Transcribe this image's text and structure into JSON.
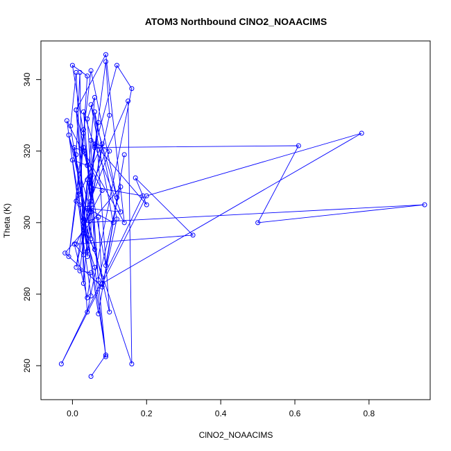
{
  "chart_data": {
    "type": "line",
    "title": "ATOM3 Northbound ClNO2_NOAACIMS",
    "xlabel": "ClNO2_NOAACIMS",
    "ylabel": "Theta (K)",
    "xlim": [
      -0.085,
      0.965
    ],
    "ylim": [
      250.5,
      350.8
    ],
    "xticks": [
      0.0,
      0.2,
      0.4,
      0.6,
      0.8
    ],
    "xtick_labels": [
      "0.0",
      "0.2",
      "0.4",
      "0.6",
      "0.8"
    ],
    "yticks": [
      260,
      280,
      300,
      320,
      340
    ],
    "ytick_labels": [
      "260",
      "280",
      "300",
      "320",
      "340"
    ],
    "grid": false,
    "series": [
      {
        "color": "#0000ff",
        "x": [
          0.05,
          0.09,
          0.005,
          0.03,
          0.14,
          0.09,
          0.01,
          0.04,
          0.03,
          0.02,
          0.04,
          0.0,
          0.03,
          0.05,
          0.07,
          0.01,
          0.1,
          0.09,
          0.06,
          0.03,
          0.05,
          0.04,
          0.03,
          0.16,
          0.15,
          0.05,
          0.19,
          -0.03,
          0.2,
          0.78,
          0.08,
          0.07,
          0.03,
          0.95,
          0.5,
          0.61,
          0.06,
          0.12,
          0.16,
          0.04,
          0.01,
          0.02,
          0.03,
          0.06,
          0.2,
          0.17,
          0.325,
          0.01,
          0.05,
          0.05,
          0.08,
          0.01,
          0.05,
          -0.01,
          0.1,
          0.06,
          0.12,
          0.08,
          -0.02,
          0.13,
          0.07,
          0.04,
          0.06,
          0.03,
          0.01,
          -0.005,
          0.07,
          0.14,
          0.09,
          0.03,
          -0.01,
          0.05,
          0.12,
          0.05,
          0.11,
          0.04,
          0.13,
          0.06,
          0.04,
          0.01,
          0.04,
          0.02,
          0.0,
          0.04,
          0.09,
          0.06,
          0.03,
          0.06,
          0.05,
          0.1,
          0.04,
          0.05,
          0.05,
          0.02,
          0.05,
          0.04,
          0.005,
          0.03,
          0.03,
          0.08,
          -0.015,
          0.05
        ],
        "y": [
          257.0,
          263.0,
          321.0,
          320.0,
          300.0,
          347.0,
          331.5,
          316.0,
          326.0,
          308.0,
          341.0,
          344.0,
          325.0,
          311.0,
          328.0,
          287.5,
          330.0,
          345.0,
          321.0,
          331.0,
          306.0,
          312.0,
          301.0,
          260.5,
          334.0,
          310.0,
          307.5,
          260.5,
          307.5,
          325.0,
          283.0,
          301.5,
          300.0,
          305.0,
          300.0,
          321.5,
          321.0,
          344.0,
          337.5,
          275.0,
          319.0,
          342.0,
          283.0,
          322.0,
          305.0,
          312.5,
          296.5,
          294.0,
          303.0,
          305.0,
          322.0,
          306.0,
          303.0,
          324.5,
          275.0,
          331.0,
          301.0,
          282.0,
          291.5,
          310.0,
          284.0,
          329.0,
          335.0,
          298.0,
          342.0,
          327.0,
          274.5,
          319.0,
          288.0,
          321.0,
          290.5,
          342.5,
          307.0,
          333.0,
          300.0,
          304.0,
          303.0,
          321.5,
          290.5,
          331.5,
          292.0,
          305.0,
          317.5,
          316.0,
          262.5,
          287.5,
          298.0,
          292.5,
          323.0,
          320.0,
          304.0,
          295.5,
          313.0,
          286.5,
          286.0,
          279.0,
          294.0,
          291.0,
          299.0,
          309.0,
          328.5,
          279.5
        ]
      }
    ]
  }
}
